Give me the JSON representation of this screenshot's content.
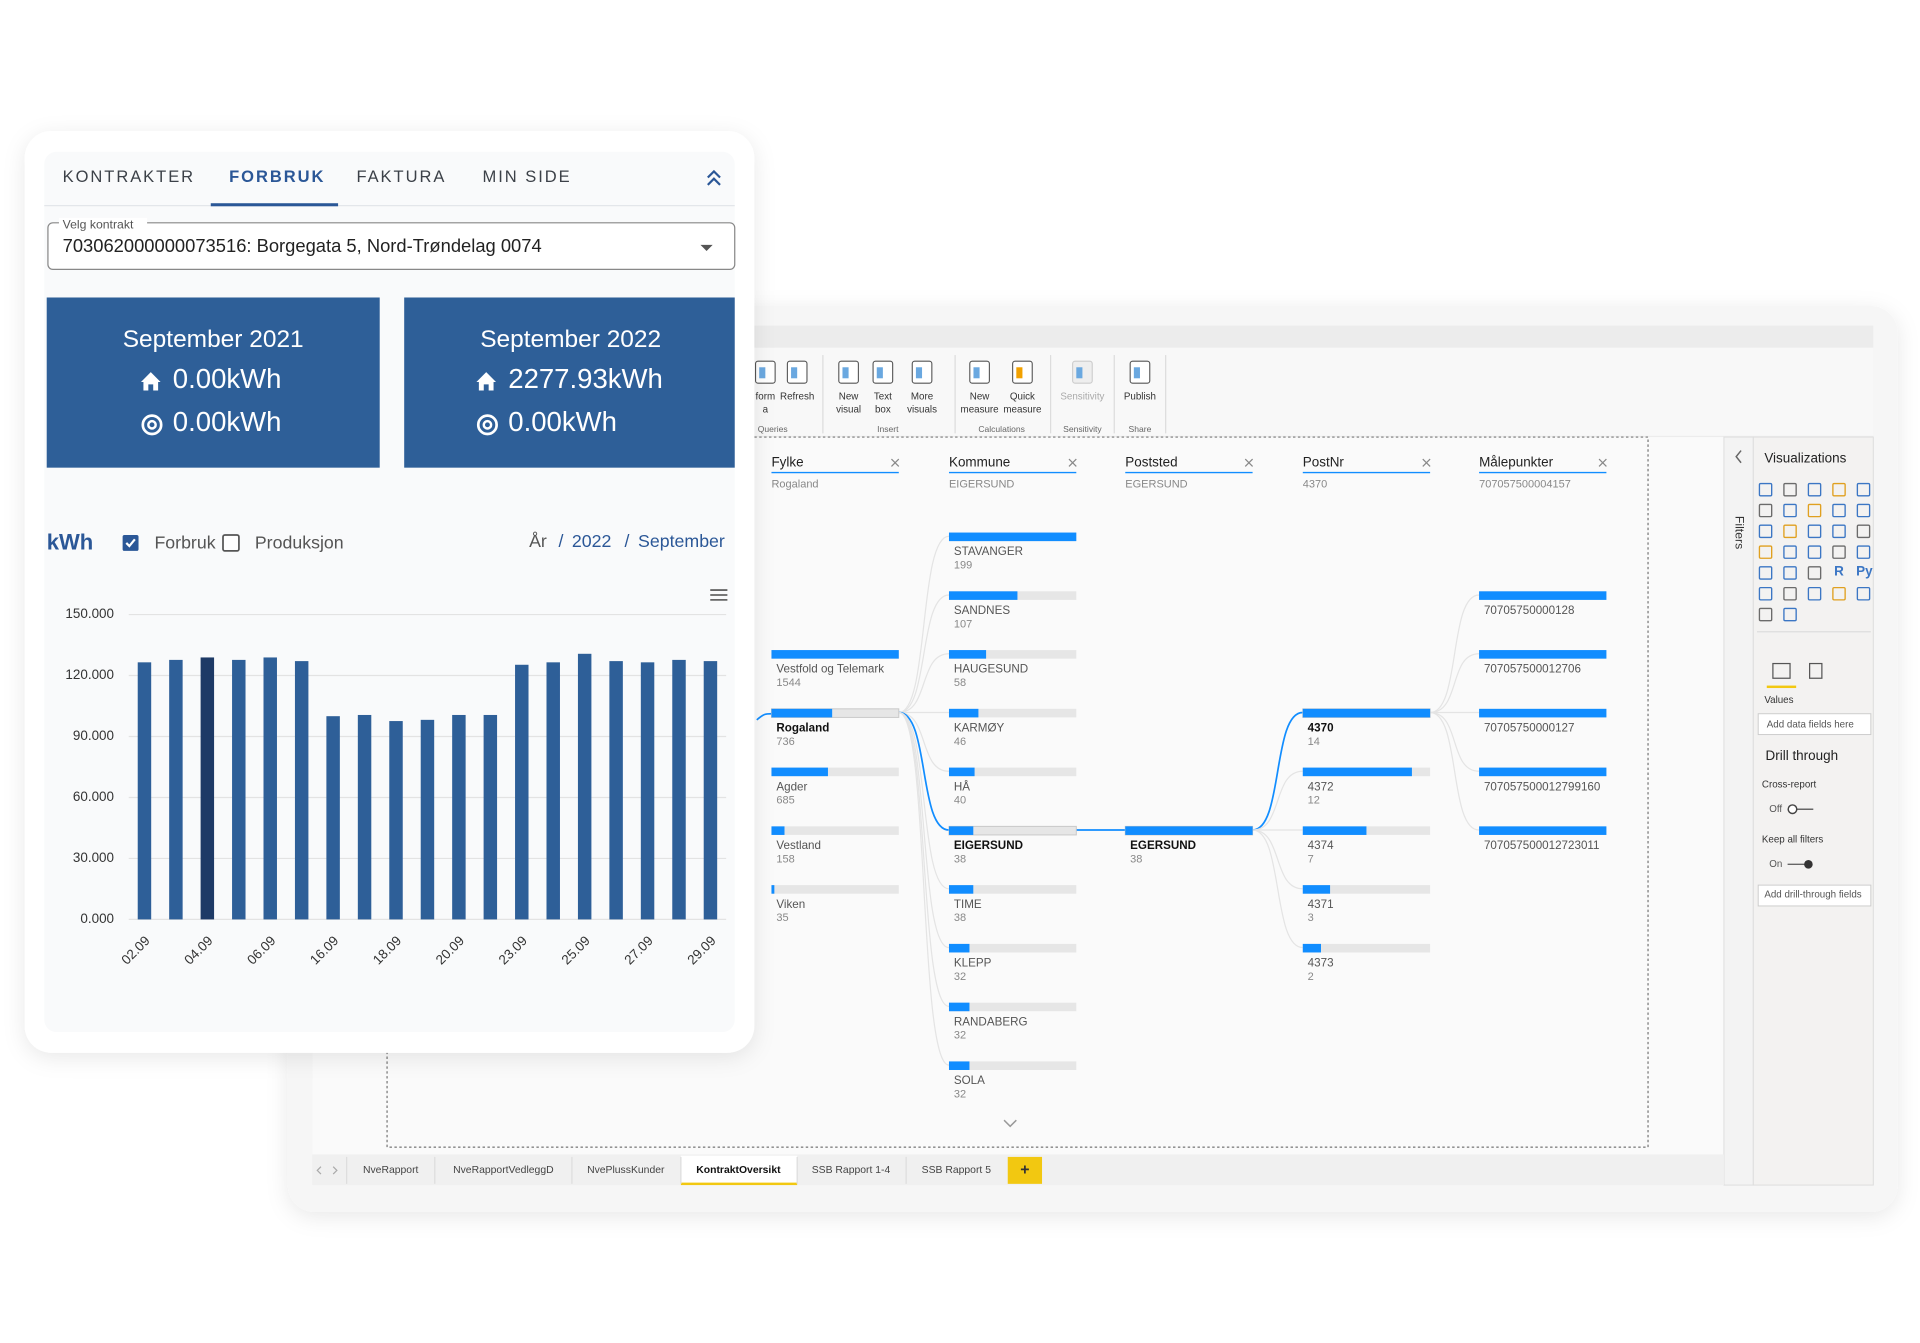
{
  "app": {
    "tabs": [
      "KONTRAKTER",
      "FORBRUK",
      "FAKTURA",
      "MIN SIDE"
    ],
    "contract_select": {
      "label": "Velg kontrakt",
      "value": "703062000000073516: Borgegata 5, Nord-Trøndelag 0074"
    },
    "cards": [
      {
        "period": "September 2021",
        "consumption": "0.00kWh",
        "production": "0.00kWh"
      },
      {
        "period": "September 2022",
        "consumption": "2277.93kWh",
        "production": "0.00kWh"
      }
    ],
    "chart": {
      "type": "bar",
      "unit": "kWh",
      "toggles": [
        {
          "label": "Forbruk",
          "checked": true
        },
        {
          "label": "Produksjon",
          "checked": false
        }
      ],
      "breadcrumb": [
        "År",
        "2022",
        "September"
      ],
      "separator": "/",
      "categories": [
        "02.09",
        null,
        "04.09",
        null,
        "06.09",
        null,
        "16.09",
        null,
        "18.09",
        null,
        "20.09",
        null,
        "23.09",
        null,
        "25.09",
        null,
        "27.09",
        null,
        "29.09"
      ],
      "values": [
        126500,
        127700,
        128900,
        127700,
        128900,
        127100,
        100000,
        100600,
        97600,
        98200,
        100600,
        100600,
        125300,
        126500,
        130700,
        127100,
        126500,
        127700,
        127100
      ],
      "colors": [
        "#2e5f98",
        "#2e5f98",
        "#1e3a66",
        "#2e5f98",
        "#2e5f98",
        "#2e5f98",
        "#2e5f98",
        "#2e5f98",
        "#2e5f98",
        "#2e5f98",
        "#2e5f98",
        "#2e5f98",
        "#2e5f98",
        "#2e5f98",
        "#2e5f98",
        "#2e5f98",
        "#2e5f98",
        "#2e5f98",
        "#2e5f98"
      ],
      "ylim": [
        0,
        150000
      ],
      "yticks": [
        {
          "value": 0,
          "label": "0.000"
        },
        {
          "value": 30000,
          "label": "30.000"
        },
        {
          "value": 60000,
          "label": "60.000"
        },
        {
          "value": 90000,
          "label": "90.000"
        },
        {
          "value": 120000,
          "label": "120.000"
        },
        {
          "value": 150000,
          "label": "150.000"
        }
      ],
      "grid": true
    }
  },
  "powerbi": {
    "ribbon": [
      {
        "name": "Queries",
        "items": [
          [
            "form",
            "a"
          ],
          [
            "Refresh"
          ]
        ]
      },
      {
        "name": "Insert",
        "items": [
          [
            "New",
            "visual"
          ],
          [
            "Text",
            "box"
          ],
          [
            "More",
            "visuals"
          ]
        ]
      },
      {
        "name": "Calculations",
        "items": [
          [
            "New",
            "measure"
          ],
          [
            "Quick",
            "measure"
          ]
        ]
      },
      {
        "name": "Sensitivity",
        "items": [
          [
            "Sensitivity"
          ]
        ]
      },
      {
        "name": "Share",
        "items": [
          [
            "Publish"
          ]
        ]
      }
    ],
    "tree": {
      "columns": [
        {
          "title": "Fylke",
          "filter": "Rogaland",
          "nodes": [
            {
              "label": "Vestfold og Telemark",
              "value": 1544
            },
            {
              "label": "Rogaland",
              "value": 736
            },
            {
              "label": "Agder",
              "value": 685
            },
            {
              "label": "Vestland",
              "value": 158
            },
            {
              "label": "Viken",
              "value": 35
            }
          ]
        },
        {
          "title": "Kommune",
          "filter": "EIGERSUND",
          "nodes": [
            {
              "label": "STAVANGER",
              "value": 199
            },
            {
              "label": "SANDNES",
              "value": 107
            },
            {
              "label": "HAUGESUND",
              "value": 58
            },
            {
              "label": "KARMØY",
              "value": 46
            },
            {
              "label": "HÅ",
              "value": 40
            },
            {
              "label": "EIGERSUND",
              "value": 38
            },
            {
              "label": "TIME",
              "value": 38
            },
            {
              "label": "KLEPP",
              "value": 32
            },
            {
              "label": "RANDABERG",
              "value": 32
            },
            {
              "label": "SOLA",
              "value": 32
            }
          ]
        },
        {
          "title": "Poststed",
          "filter": "EGERSUND",
          "nodes": [
            {
              "label": "EGERSUND",
              "value": 38
            }
          ]
        },
        {
          "title": "PostNr",
          "filter": "4370",
          "nodes": [
            {
              "label": "4370",
              "value": 14
            },
            {
              "label": "4372",
              "value": 12
            },
            {
              "label": "4374",
              "value": 7
            },
            {
              "label": "4371",
              "value": 3
            },
            {
              "label": "4373",
              "value": 2
            }
          ]
        },
        {
          "title": "Målepunkter",
          "filter": "707057500004157",
          "nodes": [
            {
              "label": "70705750000128"
            },
            {
              "label": "707057500012706"
            },
            {
              "label": "70705750000127"
            },
            {
              "label": "707057500012799160"
            },
            {
              "label": "707057500012723011"
            }
          ]
        }
      ]
    },
    "panel": {
      "title": "Visualizations",
      "filters": "Filters",
      "icon_texts": [
        "R",
        "Py"
      ],
      "values": "Values",
      "add_fields": "Add data fields here",
      "drill_through": "Drill through",
      "cross_report": "Cross-report",
      "off": "Off",
      "keep_filters": "Keep all filters",
      "on": "On",
      "add_drill": "Add drill-through fields"
    },
    "sheet_tabs": [
      "NveRapport",
      "NveRapportVedleggD",
      "NvePlussKunder",
      "KontraktOversikt",
      "SSB Rapport 1-4",
      "SSB Rapport 5"
    ],
    "add_tab": "+"
  }
}
